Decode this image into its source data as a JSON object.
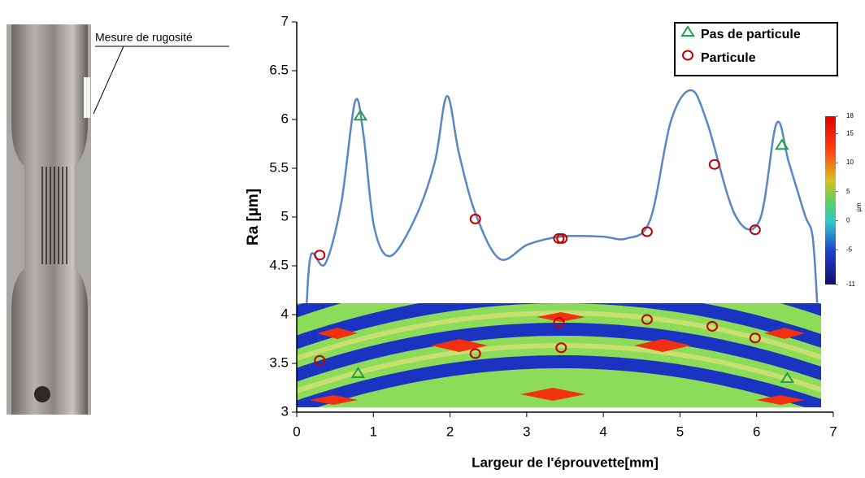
{
  "chart_data": {
    "type": "line",
    "annotation": "Mesure de rugosité",
    "xlabel": "Largeur de l'éprouvette[mm]",
    "ylabel": "Ra [µm]",
    "xlim": [
      0,
      7
    ],
    "xticks": [
      0,
      1,
      2,
      3,
      4,
      5,
      6,
      7
    ],
    "ylim": [
      3,
      7
    ],
    "yticks": [
      3,
      3.5,
      4,
      4.5,
      5,
      5.5,
      6,
      6.5,
      7
    ],
    "profile": {
      "color": "#5b86c5",
      "x": [
        0.13,
        0.19,
        0.37,
        0.58,
        0.76,
        0.87,
        1.01,
        1.22,
        1.54,
        1.8,
        1.96,
        2.12,
        2.34,
        2.65,
        3.02,
        3.45,
        3.98,
        4.3,
        4.61,
        4.88,
        5.14,
        5.35,
        5.72,
        6.04,
        6.26,
        6.42,
        6.63,
        6.73,
        6.79
      ],
      "values": [
        4.12,
        4.62,
        4.52,
        5.14,
        6.18,
        5.85,
        4.9,
        4.6,
        4.98,
        5.56,
        6.24,
        5.64,
        5.02,
        4.57,
        4.72,
        4.8,
        4.8,
        4.78,
        4.97,
        5.98,
        6.3,
        5.98,
        5.02,
        4.97,
        5.96,
        5.56,
        5.02,
        4.8,
        4.12
      ]
    },
    "series": [
      {
        "name": "Pas de particule",
        "color": "#1fa04a",
        "marker": "triangle",
        "x": [
          0.83,
          6.33,
          0.8,
          6.4
        ],
        "values": [
          6.04,
          5.74,
          3.4,
          3.35
        ]
      },
      {
        "name": "Particule",
        "color": "#c00000",
        "marker": "circle",
        "x": [
          0.3,
          2.33,
          3.42,
          3.46,
          4.57,
          5.45,
          5.98,
          0.3,
          2.33,
          3.42,
          3.45,
          4.57,
          5.42,
          5.98
        ],
        "values": [
          4.61,
          4.98,
          4.78,
          4.78,
          4.85,
          5.54,
          4.87,
          3.53,
          3.6,
          3.92,
          3.66,
          3.95,
          3.88,
          3.76
        ]
      }
    ],
    "colorbar": {
      "lim": [
        -11,
        18
      ],
      "ticks": [
        18,
        15,
        10,
        5,
        0,
        -5,
        -11
      ],
      "label": "µm"
    }
  }
}
